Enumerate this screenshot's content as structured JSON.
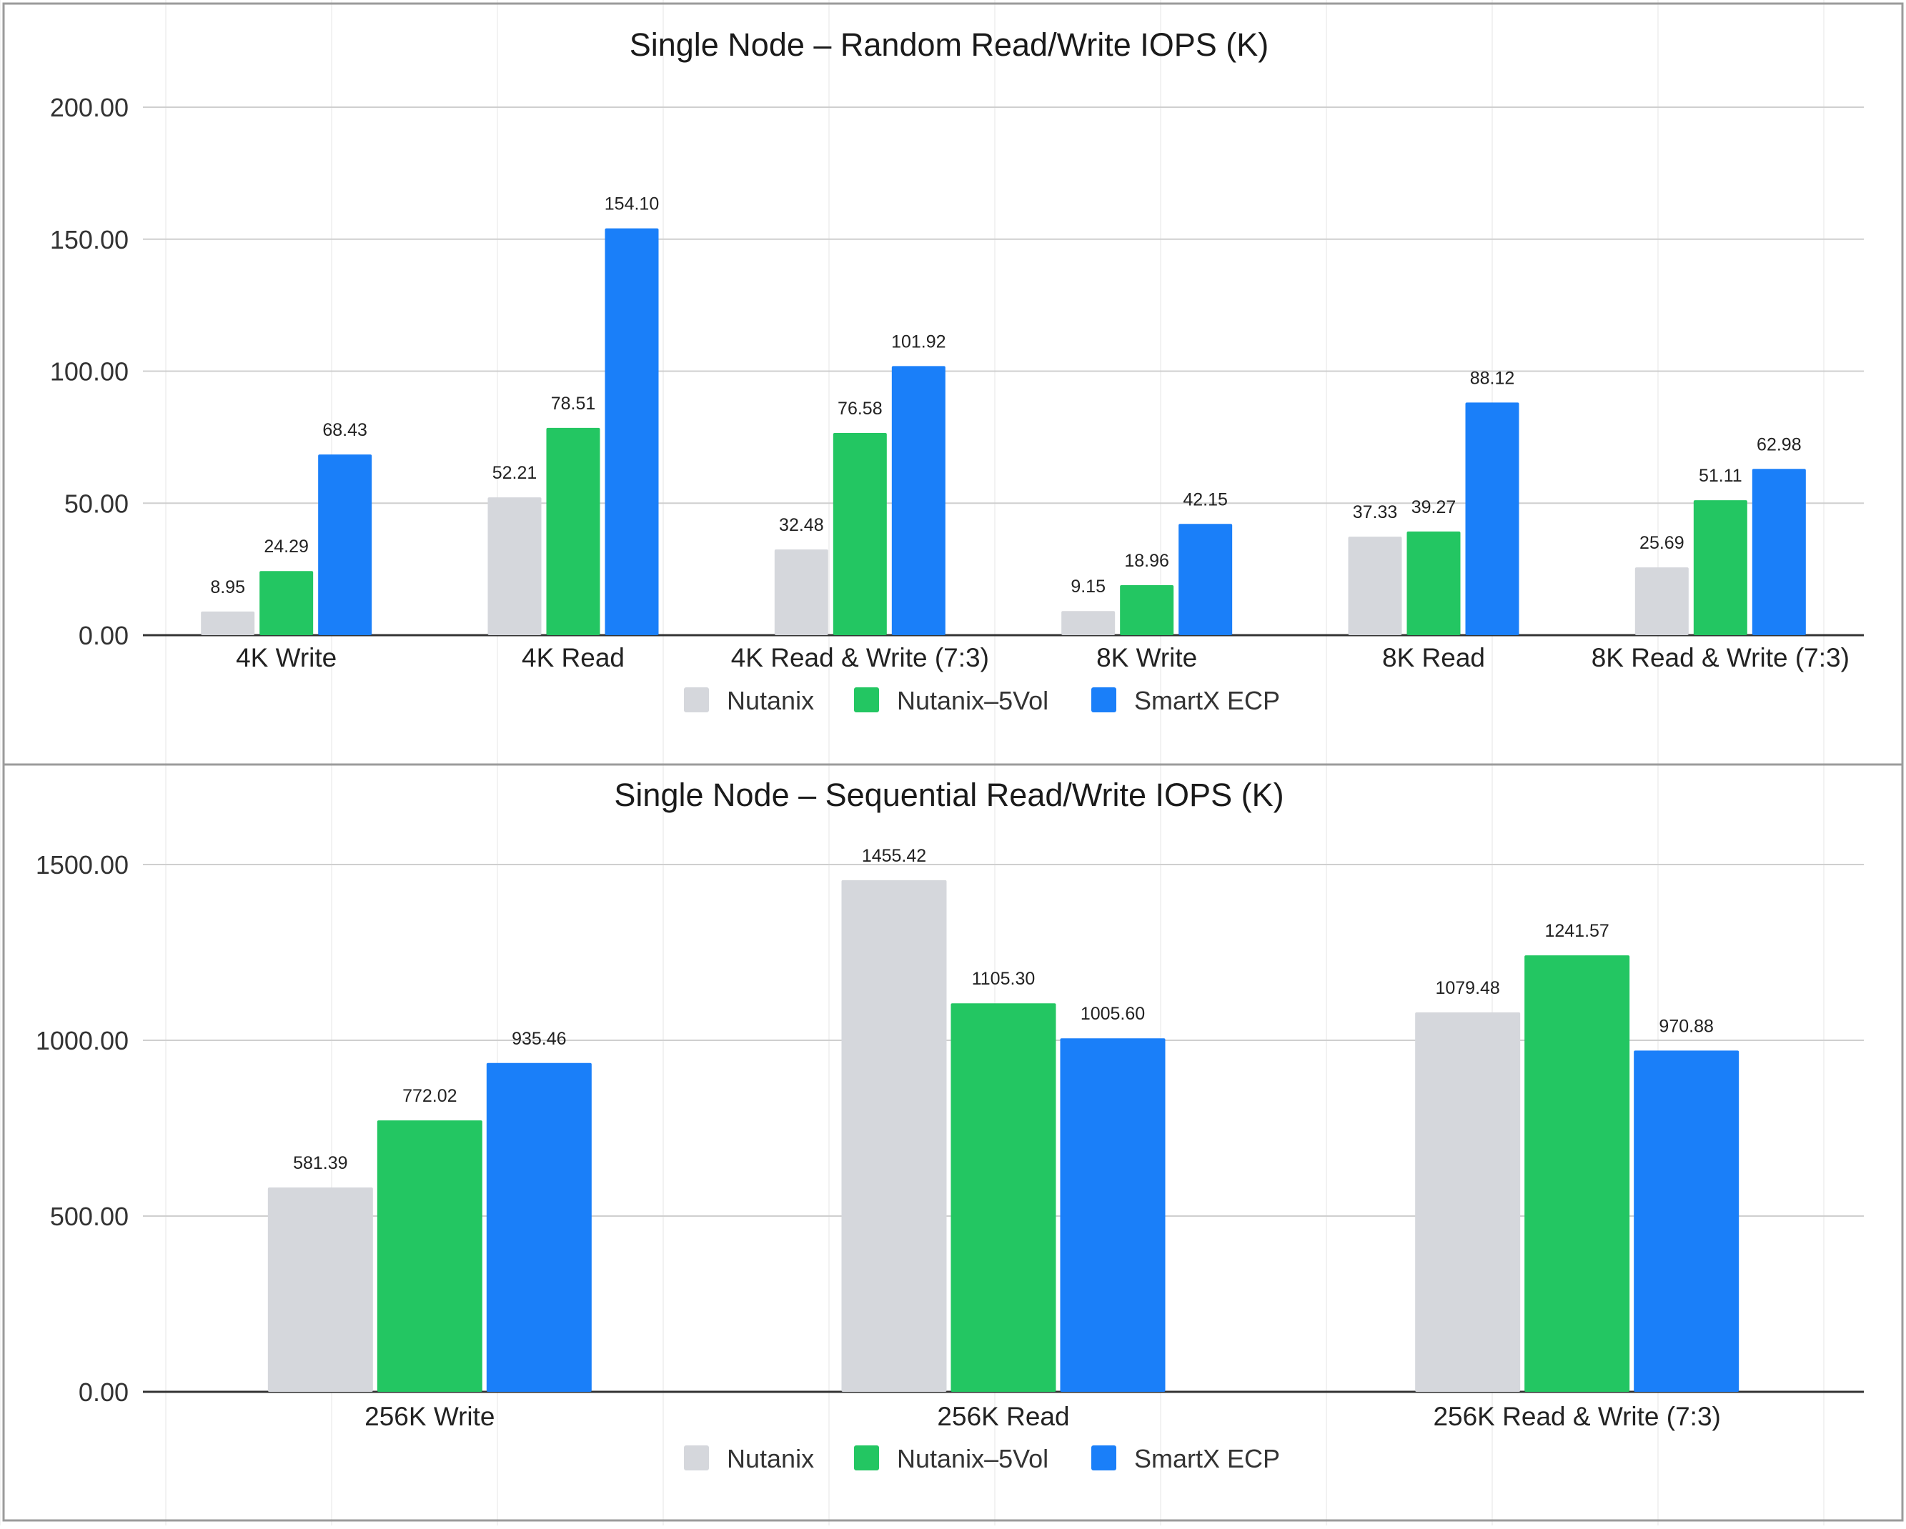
{
  "colors": {
    "nutanix": "#d5d7dc",
    "nutanix_5vol": "#23c662",
    "smartx": "#1a7ff9"
  },
  "chart_data": [
    {
      "type": "bar",
      "title": "Single Node – Random Read/Write IOPS (K)",
      "categories": [
        "4K Write",
        "4K Read",
        "4K Read & Write (7:3)",
        "8K Write",
        "8K Read",
        "8K Read & Write (7:3)"
      ],
      "series": [
        {
          "name": "Nutanix",
          "color": "#d5d7dc",
          "values": [
            8.95,
            52.21,
            32.48,
            9.15,
            37.33,
            25.69
          ],
          "labels": [
            "8.95",
            "52.21",
            "32.48",
            "9.15",
            "37.33",
            "25.69"
          ]
        },
        {
          "name": "Nutanix–5Vol",
          "color": "#23c662",
          "values": [
            24.29,
            78.51,
            76.58,
            18.96,
            39.27,
            51.11
          ],
          "labels": [
            "24.29",
            "78.51",
            "76.58",
            "18.96",
            "39.27",
            "51.11"
          ]
        },
        {
          "name": "SmartX ECP",
          "color": "#1a7ff9",
          "values": [
            68.43,
            154.1,
            101.92,
            42.15,
            88.12,
            62.98
          ],
          "labels": [
            "68.43",
            "154.10",
            "101.92",
            "42.15",
            "88.12",
            "62.98"
          ]
        }
      ],
      "ylim": [
        0,
        200
      ],
      "yticks": [
        0,
        50,
        100,
        150,
        200
      ],
      "ytick_labels": [
        "0.00",
        "50.00",
        "100.00",
        "150.00",
        "200.00"
      ],
      "grid": true,
      "legend": "bottom"
    },
    {
      "type": "bar",
      "title": "Single Node – Sequential Read/Write IOPS (K)",
      "categories": [
        "256K Write",
        "256K Read",
        "256K Read & Write (7:3)"
      ],
      "series": [
        {
          "name": "Nutanix",
          "color": "#d5d7dc",
          "values": [
            581.39,
            1455.42,
            1079.48
          ],
          "labels": [
            "581.39",
            "1455.42",
            "1079.48"
          ]
        },
        {
          "name": "Nutanix–5Vol",
          "color": "#23c662",
          "values": [
            772.02,
            1105.3,
            1241.57
          ],
          "labels": [
            "772.02",
            "1105.30",
            "1241.57"
          ]
        },
        {
          "name": "SmartX ECP",
          "color": "#1a7ff9",
          "values": [
            935.46,
            1005.6,
            970.88
          ],
          "labels": [
            "935.46",
            "1005.60",
            "970.88"
          ]
        }
      ],
      "ylim": [
        0,
        1500
      ],
      "yticks": [
        0,
        500,
        1000,
        1500
      ],
      "ytick_labels": [
        "0.00",
        "500.00",
        "1000.00",
        "1500.00"
      ],
      "grid": true,
      "legend": "bottom"
    }
  ]
}
